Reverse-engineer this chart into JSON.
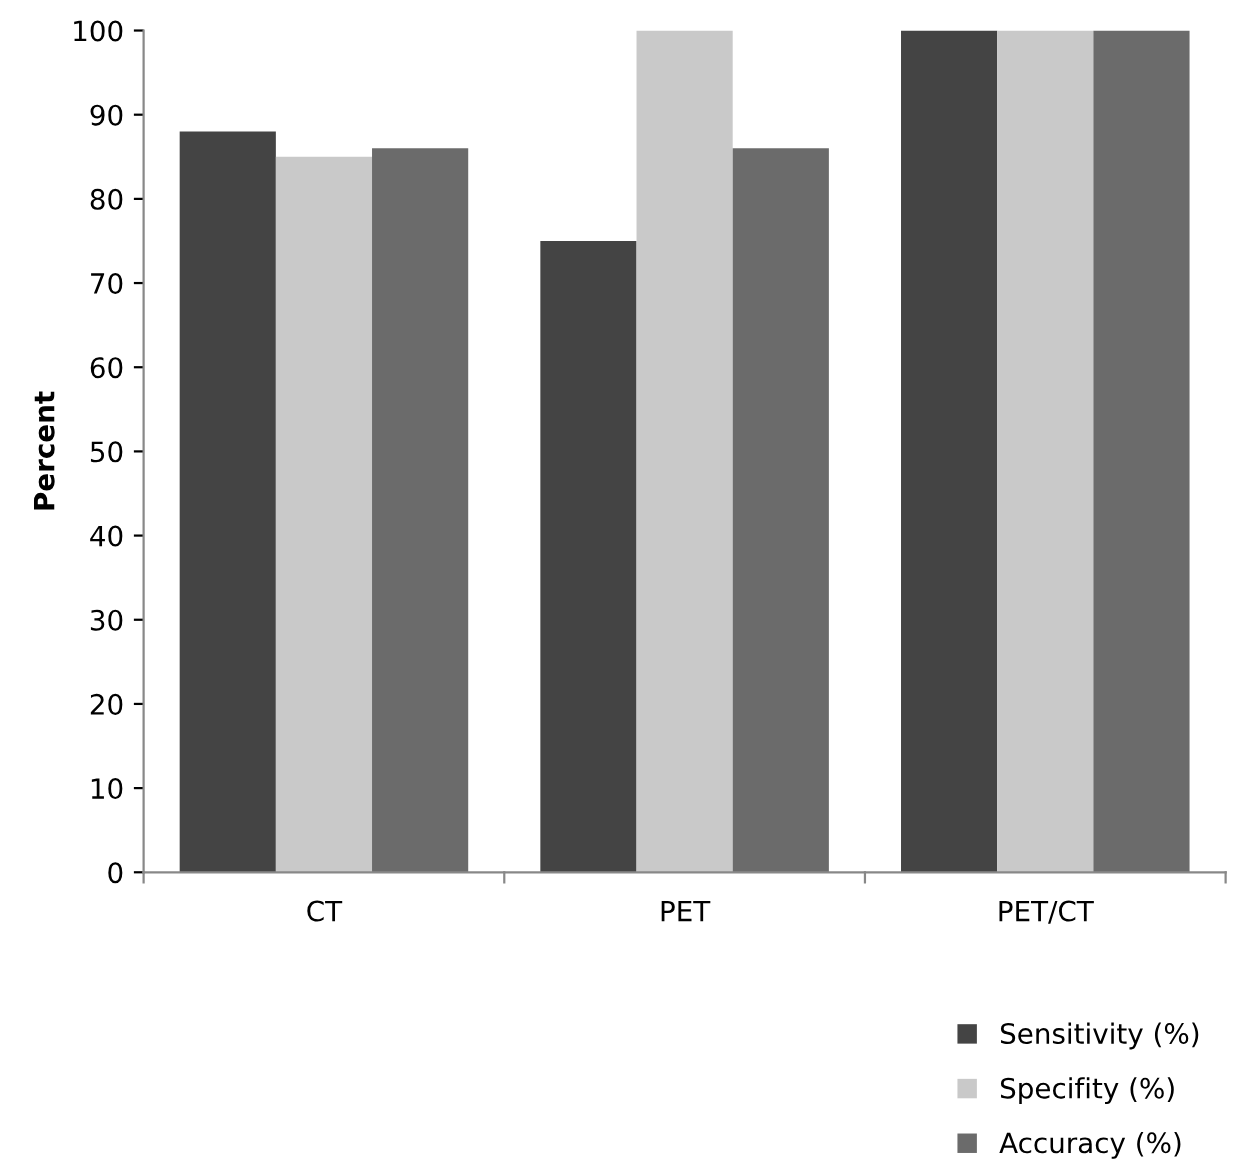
{
  "chart_data": {
    "type": "bar",
    "ylabel": "Percent",
    "categories": [
      "CT",
      "PET",
      "PET/CT"
    ],
    "series": [
      {
        "name": "Sensitivity (%)",
        "color": "#444444",
        "values": [
          88,
          75,
          100
        ]
      },
      {
        "name": "Specifity (%)",
        "color": "#c9c9c9",
        "values": [
          85,
          100,
          100
        ]
      },
      {
        "name": "Accuracy (%)",
        "color": "#6b6b6b",
        "values": [
          86,
          86,
          100
        ]
      }
    ],
    "ylim": [
      0,
      100
    ],
    "yticks": [
      0,
      10,
      20,
      30,
      40,
      50,
      60,
      70,
      80,
      90,
      100
    ],
    "grid": false,
    "legend": "bottom right"
  }
}
